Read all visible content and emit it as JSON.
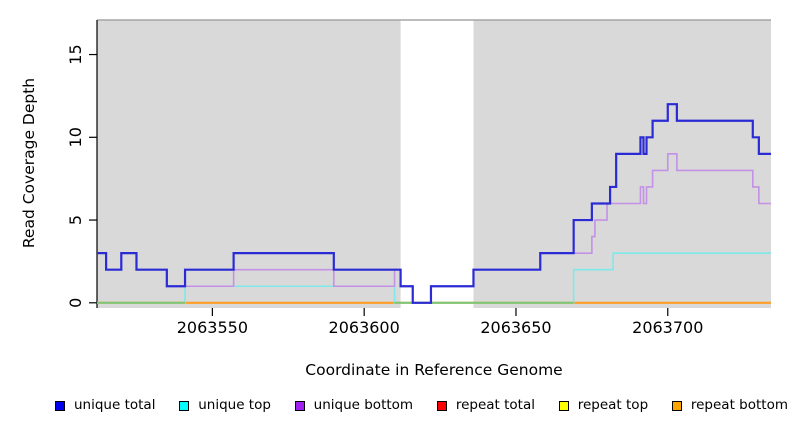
{
  "chart_data": {
    "type": "line",
    "title": "",
    "xlabel": "Coordinate in Reference Genome",
    "ylabel": "Read Coverage Depth",
    "xlim": [
      2063512,
      2063734
    ],
    "ylim": [
      0,
      17
    ],
    "x_ticks": [
      "2063550",
      "2063600",
      "2063650",
      "2063700"
    ],
    "x_tick_values": [
      2063550,
      2063600,
      2063650,
      2063700
    ],
    "y_ticks": [
      "0",
      "5",
      "10",
      "15"
    ],
    "y_tick_values": [
      0,
      5,
      10,
      15
    ],
    "grid": "off",
    "legend_position": "bottom",
    "plot_background": "#d9d9d9",
    "plot_top_border_color": "#a6a6a6",
    "shaded_regions": [
      [
        2063512,
        2063612
      ],
      [
        2063636,
        2063734
      ]
    ],
    "unshaded_gap": [
      2063612,
      2063636
    ],
    "series": [
      {
        "name": "unique total",
        "color": "#2b2bd5",
        "width": 2.2,
        "steps": [
          [
            2063512,
            3
          ],
          [
            2063515,
            2
          ],
          [
            2063520,
            3
          ],
          [
            2063525,
            2
          ],
          [
            2063535,
            1
          ],
          [
            2063541,
            2
          ],
          [
            2063557,
            3
          ],
          [
            2063590,
            2
          ],
          [
            2063612,
            1
          ],
          [
            2063616,
            0
          ],
          [
            2063622,
            1
          ],
          [
            2063636,
            2
          ],
          [
            2063658,
            3
          ],
          [
            2063669,
            5
          ],
          [
            2063675,
            6
          ],
          [
            2063681,
            7
          ],
          [
            2063683,
            9
          ],
          [
            2063691,
            10
          ],
          [
            2063692,
            9
          ],
          [
            2063693,
            10
          ],
          [
            2063695,
            11
          ],
          [
            2063700,
            12
          ],
          [
            2063703,
            11
          ],
          [
            2063728,
            10
          ],
          [
            2063730,
            9
          ]
        ],
        "end": 2063734
      },
      {
        "name": "unique top",
        "color": "#7fe9e9",
        "width": 1.6,
        "steps": [
          [
            2063512,
            0
          ],
          [
            2063541,
            1
          ],
          [
            2063610,
            0
          ],
          [
            2063669,
            2
          ],
          [
            2063682,
            3
          ]
        ],
        "end": 2063734
      },
      {
        "name": "unique bottom",
        "color": "#c391e6",
        "width": 1.6,
        "steps": [
          [
            2063512,
            3
          ],
          [
            2063515,
            2
          ],
          [
            2063520,
            3
          ],
          [
            2063525,
            2
          ],
          [
            2063535,
            1
          ],
          [
            2063557,
            2
          ],
          [
            2063590,
            1
          ],
          [
            2063610,
            2
          ],
          [
            2063612,
            1
          ],
          [
            2063616,
            0
          ],
          [
            2063622,
            1
          ],
          [
            2063636,
            2
          ],
          [
            2063658,
            3
          ],
          [
            2063675,
            4
          ],
          [
            2063676,
            5
          ],
          [
            2063680,
            6
          ],
          [
            2063691,
            7
          ],
          [
            2063692,
            6
          ],
          [
            2063693,
            7
          ],
          [
            2063695,
            8
          ],
          [
            2063700,
            9
          ],
          [
            2063703,
            8
          ],
          [
            2063728,
            7
          ],
          [
            2063730,
            6
          ]
        ],
        "end": 2063734
      },
      {
        "name": "repeat total",
        "color": "#ff0000",
        "width": 1.6,
        "steps": [
          [
            2063512,
            0
          ]
        ],
        "end": 2063734
      },
      {
        "name": "repeat top",
        "color": "#ffff00",
        "width": 1.6,
        "steps": [
          [
            2063512,
            0
          ]
        ],
        "end": 2063734
      },
      {
        "name": "repeat bottom",
        "color": "#ff9e26",
        "width": 2,
        "steps": [
          [
            2063512,
            0
          ]
        ],
        "end": 2063734
      }
    ],
    "baseline_overlap_segments": [
      {
        "color": "#7cc77c",
        "from": 2063512,
        "to": 2063541
      },
      {
        "color": "#7cc77c",
        "from": 2063610,
        "to": 2063669
      }
    ]
  },
  "legend": {
    "items": [
      {
        "label": "unique total",
        "color": "#0000ee"
      },
      {
        "label": "unique top",
        "color": "#00ffff"
      },
      {
        "label": "unique bottom",
        "color": "#a020f0"
      },
      {
        "label": "repeat total",
        "color": "#ff0000"
      },
      {
        "label": "repeat top",
        "color": "#ffff00"
      },
      {
        "label": "repeat bottom",
        "color": "#ffa500"
      }
    ]
  }
}
